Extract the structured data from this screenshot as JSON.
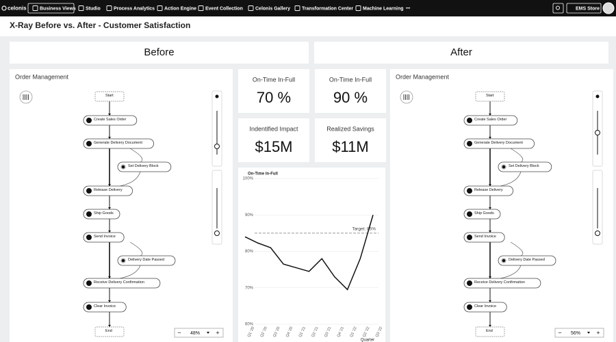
{
  "nav": {
    "logo": "celonis",
    "items": [
      "Business Views",
      "Studio",
      "Process Analytics",
      "Action Engine",
      "Event Collection",
      "Celonis Gallery",
      "Transformation Center",
      "Machine Learning"
    ],
    "more": "•••",
    "store": "EMS Store"
  },
  "title": "X-Ray Before vs. After - Customer Satisfaction",
  "panels": [
    {
      "header": "Before",
      "process_title": "Order Management",
      "zoom": "48%",
      "nodes": [
        "Start",
        "Create Sales Order",
        "Generate Delivery Document",
        "Set Delivery Block",
        "Release Delivery",
        "Ship Goods",
        "Send Invoice",
        "Delivery Date Passed",
        "Receive Delivery Confirmation",
        "Clear Invoice",
        "End"
      ]
    },
    {
      "header": "After",
      "process_title": "Order Management",
      "zoom": "56%",
      "nodes": [
        "Start",
        "Create Sales Order",
        "Generate Delivery Document",
        "Set Delivery Block",
        "Release Delivery",
        "Ship Goods",
        "Send Invoice",
        "Delivery Date Passed",
        "Receive Delivery Confirmation",
        "Clear Invoice",
        "End"
      ]
    }
  ],
  "kpis": [
    {
      "label": "On-Time In-Full",
      "value": "70 %"
    },
    {
      "label": "On-Time In-Full",
      "value": "90 %"
    },
    {
      "label": "Indentified Impact",
      "value": "$15M"
    },
    {
      "label": "Realized Savings",
      "value": "$11M"
    }
  ],
  "chart_data": {
    "type": "line",
    "title": "On-Time In-Full",
    "x_label": "Quarter",
    "categories": [
      "Q1 '20",
      "Q2 '20",
      "Q3 '20",
      "Q4 '20",
      "Q1 '21",
      "Q2 '21",
      "Q3 '21",
      "Q4 '21",
      "Q1 '22",
      "Q2 '22",
      "Q3 '22"
    ],
    "values": [
      84,
      82.3,
      81,
      76.5,
      75.5,
      74.5,
      78,
      73,
      69.5,
      78,
      90
    ],
    "color": "#111111",
    "target": {
      "value": 85,
      "label": "Target: 85%"
    },
    "ylim": [
      60,
      100
    ],
    "yticks": [
      {
        "value": 60,
        "label": "60%"
      },
      {
        "value": 70,
        "label": "70%"
      },
      {
        "value": 80,
        "label": "80%"
      },
      {
        "value": 90,
        "label": "90%"
      },
      {
        "value": 100,
        "label": "100%"
      }
    ],
    "grid": true
  }
}
